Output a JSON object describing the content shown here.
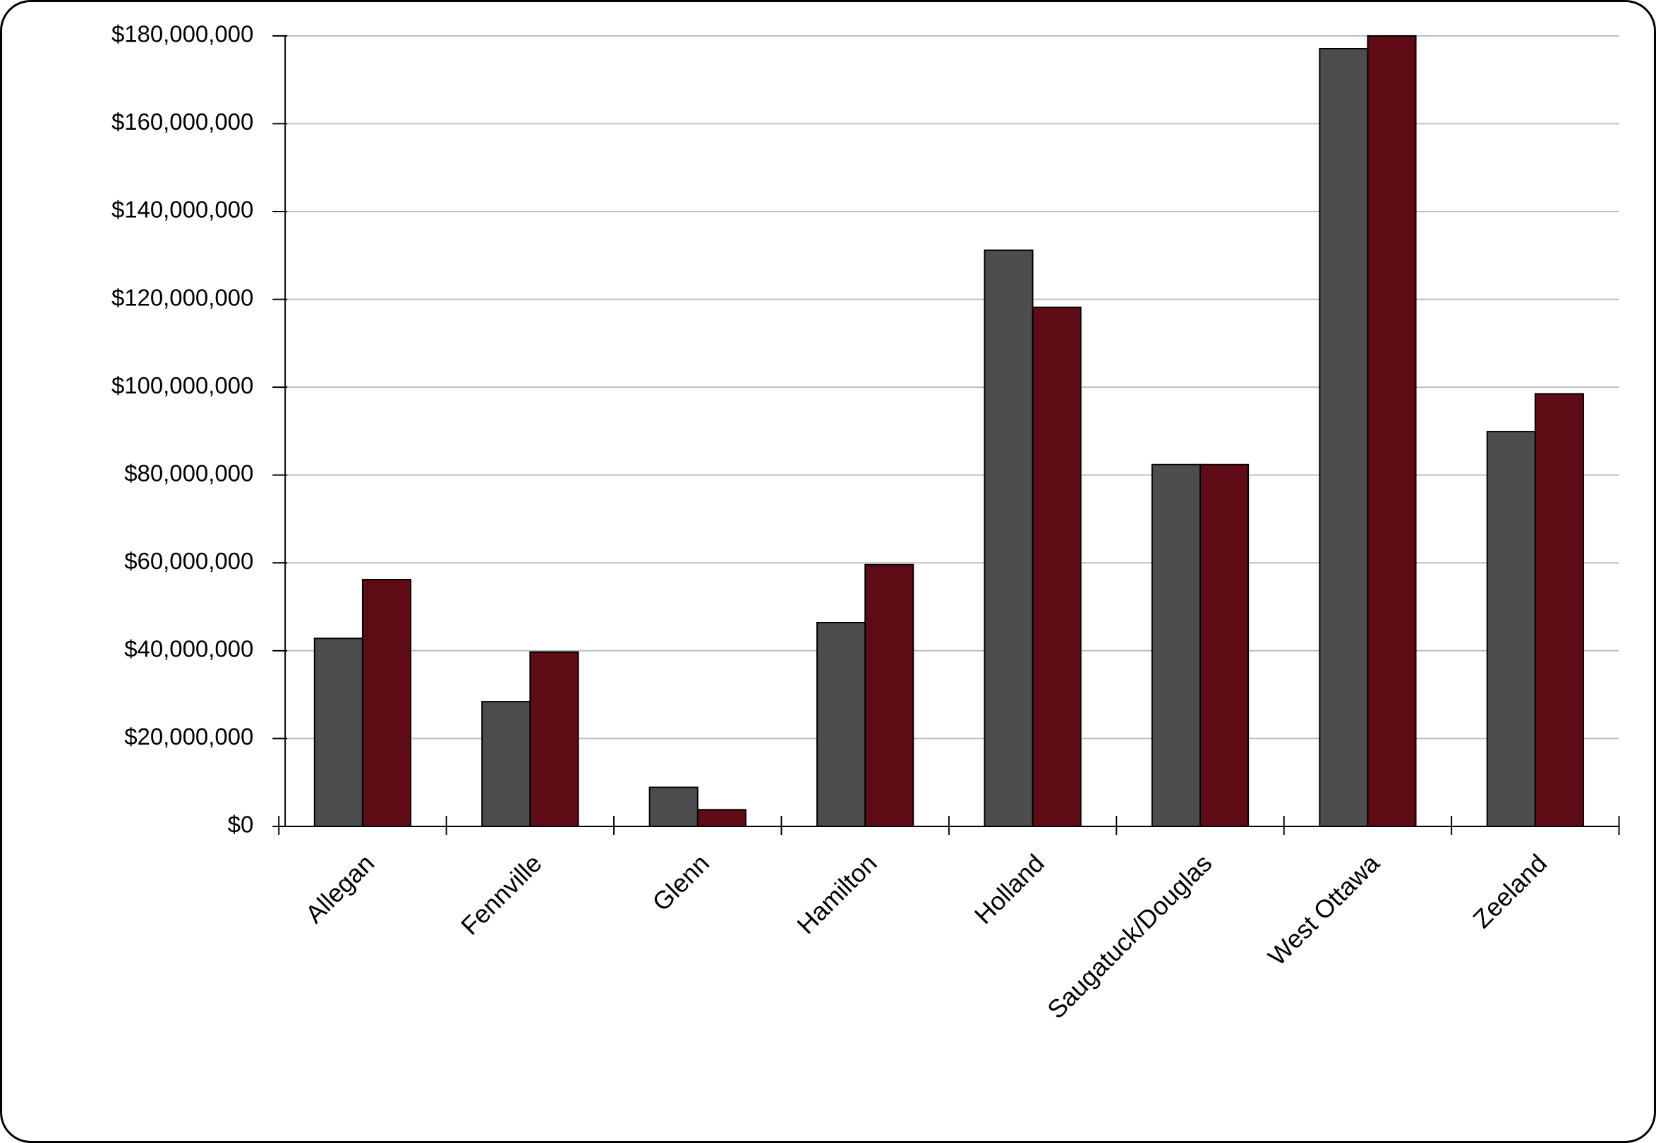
{
  "chart_data": {
    "type": "bar",
    "categories": [
      "Allegan",
      "Fennville",
      "Glenn",
      "Hamilton",
      "Holland",
      "Saugatuck/Douglas",
      "West Ottawa",
      "Zeeland"
    ],
    "series": [
      {
        "color": "#4d4d4d",
        "values": [
          42800000,
          28400000,
          8900000,
          46400000,
          131200000,
          82400000,
          177100000,
          89900000
        ]
      },
      {
        "color": "#600c16",
        "values": [
          56200000,
          39700000,
          3800000,
          59600000,
          118200000,
          82400000,
          180000000,
          98500000
        ]
      }
    ],
    "ylim": [
      0,
      180000000
    ],
    "yticks": [
      {
        "value": 0,
        "label": "$0"
      },
      {
        "value": 20000000,
        "label": "$20,000,000"
      },
      {
        "value": 40000000,
        "label": "$40,000,000"
      },
      {
        "value": 60000000,
        "label": "$60,000,000"
      },
      {
        "value": 80000000,
        "label": "$80,000,000"
      },
      {
        "value": 100000000,
        "label": "$100,000,000"
      },
      {
        "value": 120000000,
        "label": "$120,000,000"
      },
      {
        "value": 140000000,
        "label": "$140,000,000"
      },
      {
        "value": 160000000,
        "label": "$160,000,000"
      },
      {
        "value": 180000000,
        "label": "$180,000,000"
      }
    ],
    "grid": true
  }
}
